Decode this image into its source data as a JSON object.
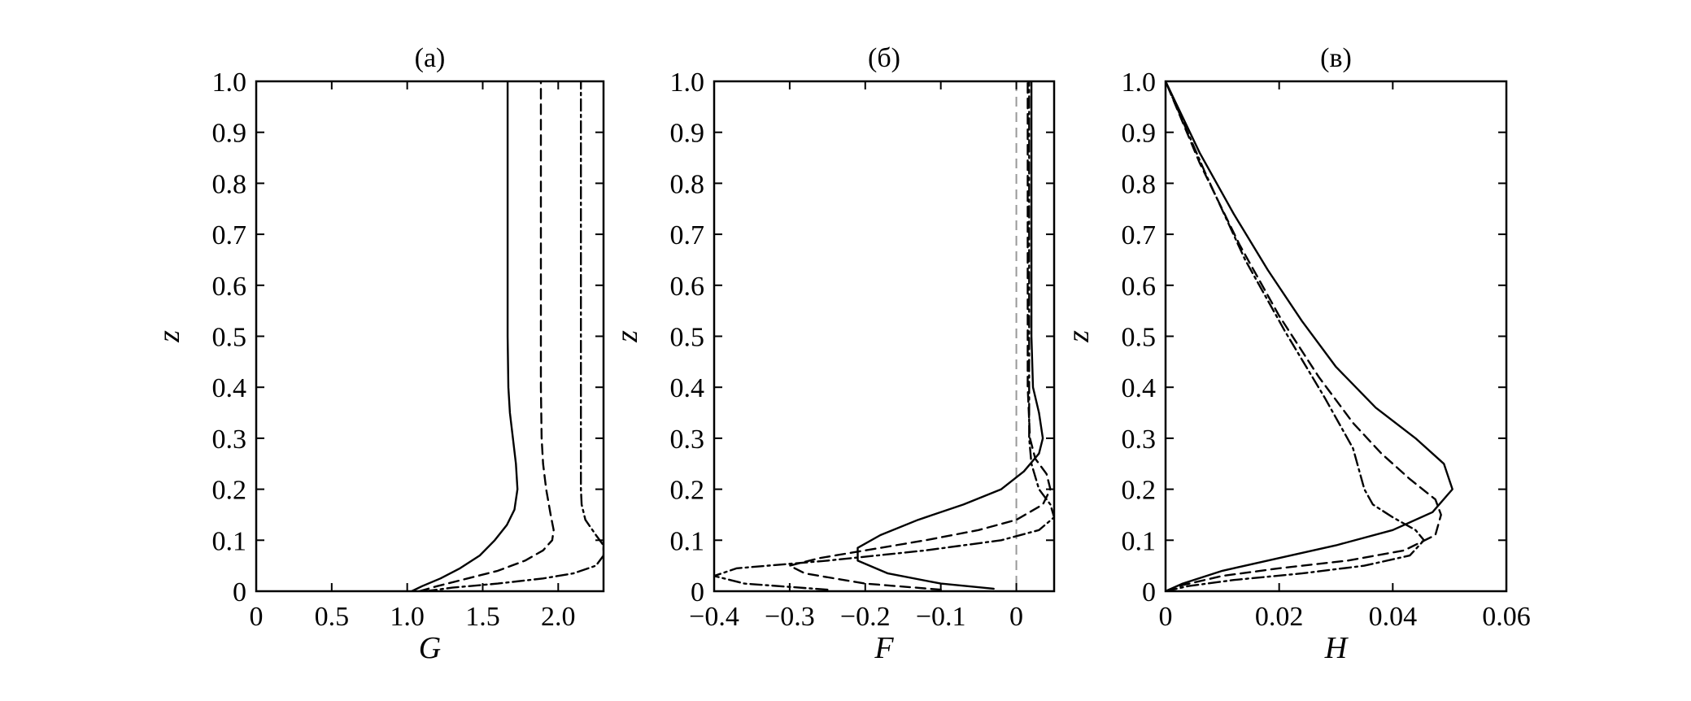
{
  "chart_data": [
    {
      "type": "line",
      "title": "(а)",
      "xlabel": "G",
      "ylabel": "z",
      "xlim": [
        0,
        2.3
      ],
      "ylim": [
        0,
        1.0
      ],
      "xticks": [
        0,
        0.5,
        1.0,
        1.5,
        2.0
      ],
      "xtick_labels": [
        "0",
        "0.5",
        "1.0",
        "1.5",
        "2.0"
      ],
      "yticks": [
        0,
        0.1,
        0.2,
        0.3,
        0.4,
        0.5,
        0.6,
        0.7,
        0.8,
        0.9,
        1.0
      ],
      "ytick_labels": [
        "0",
        "0.1",
        "0.2",
        "0.3",
        "0.4",
        "0.5",
        "0.6",
        "0.7",
        "0.8",
        "0.9",
        "1.0"
      ],
      "grid": false,
      "series": [
        {
          "style": "solid",
          "points": [
            [
              1.03,
              0
            ],
            [
              1.1,
              0.01
            ],
            [
              1.22,
              0.025
            ],
            [
              1.35,
              0.045
            ],
            [
              1.48,
              0.07
            ],
            [
              1.58,
              0.1
            ],
            [
              1.66,
              0.13
            ],
            [
              1.71,
              0.16
            ],
            [
              1.73,
              0.2
            ],
            [
              1.72,
              0.25
            ],
            [
              1.7,
              0.3
            ],
            [
              1.68,
              0.35
            ],
            [
              1.67,
              0.4
            ],
            [
              1.665,
              0.5
            ],
            [
              1.665,
              0.6
            ],
            [
              1.665,
              1.0
            ]
          ]
        },
        {
          "style": "dashed",
          "points": [
            [
              1.08,
              0
            ],
            [
              1.2,
              0.01
            ],
            [
              1.4,
              0.025
            ],
            [
              1.6,
              0.04
            ],
            [
              1.78,
              0.06
            ],
            [
              1.9,
              0.08
            ],
            [
              1.96,
              0.1
            ],
            [
              1.97,
              0.12
            ],
            [
              1.95,
              0.15
            ],
            [
              1.92,
              0.2
            ],
            [
              1.9,
              0.25
            ],
            [
              1.89,
              0.3
            ],
            [
              1.885,
              0.4
            ],
            [
              1.885,
              0.5
            ],
            [
              1.885,
              1.0
            ]
          ]
        },
        {
          "style": "dashdot",
          "points": [
            [
              1.12,
              0
            ],
            [
              1.3,
              0.007
            ],
            [
              1.6,
              0.015
            ],
            [
              1.9,
              0.025
            ],
            [
              2.1,
              0.035
            ],
            [
              2.25,
              0.05
            ],
            [
              2.3,
              0.07
            ],
            [
              2.3,
              0.09
            ],
            [
              2.25,
              0.11
            ],
            [
              2.18,
              0.14
            ],
            [
              2.155,
              0.17
            ],
            [
              2.15,
              0.2
            ],
            [
              2.15,
              0.3
            ],
            [
              2.15,
              1.0
            ]
          ]
        }
      ]
    },
    {
      "type": "line",
      "title": "(б)",
      "xlabel": "F",
      "ylabel": "z",
      "xlim": [
        -0.4,
        0.05
      ],
      "ylim": [
        0,
        1.0
      ],
      "xticks": [
        -0.4,
        -0.3,
        -0.2,
        -0.1,
        0
      ],
      "xtick_labels": [
        "−0.4",
        "−0.3",
        "−0.2",
        "−0.1",
        "0"
      ],
      "yticks": [
        0,
        0.1,
        0.2,
        0.3,
        0.4,
        0.5,
        0.6,
        0.7,
        0.8,
        0.9,
        1.0
      ],
      "ytick_labels": [
        "0",
        "0.1",
        "0.2",
        "0.3",
        "0.4",
        "0.5",
        "0.6",
        "0.7",
        "0.8",
        "0.9",
        "1.0"
      ],
      "grid": false,
      "reference_line": {
        "x": 0,
        "style": "dashed-gray"
      },
      "series": [
        {
          "style": "solid",
          "points": [
            [
              -0.03,
              0.005
            ],
            [
              -0.1,
              0.015
            ],
            [
              -0.17,
              0.035
            ],
            [
              -0.21,
              0.06
            ],
            [
              -0.21,
              0.085
            ],
            [
              -0.18,
              0.11
            ],
            [
              -0.13,
              0.14
            ],
            [
              -0.07,
              0.17
            ],
            [
              -0.02,
              0.2
            ],
            [
              0.01,
              0.235
            ],
            [
              0.03,
              0.27
            ],
            [
              0.035,
              0.3
            ],
            [
              0.03,
              0.35
            ],
            [
              0.022,
              0.4
            ],
            [
              0.02,
              0.5
            ],
            [
              0.02,
              1.0
            ]
          ]
        },
        {
          "style": "dashed",
          "points": [
            [
              -0.1,
              0.003
            ],
            [
              -0.2,
              0.015
            ],
            [
              -0.28,
              0.035
            ],
            [
              -0.3,
              0.05
            ],
            [
              -0.26,
              0.065
            ],
            [
              -0.2,
              0.08
            ],
            [
              -0.12,
              0.1
            ],
            [
              -0.05,
              0.12
            ],
            [
              0.0,
              0.14
            ],
            [
              0.035,
              0.17
            ],
            [
              0.045,
              0.2
            ],
            [
              0.04,
              0.23
            ],
            [
              0.025,
              0.26
            ],
            [
              0.018,
              0.3
            ],
            [
              0.015,
              0.4
            ],
            [
              0.015,
              1.0
            ]
          ]
        },
        {
          "style": "dashdot",
          "points": [
            [
              -0.25,
              0.003
            ],
            [
              -0.36,
              0.015
            ],
            [
              -0.4,
              0.03
            ],
            [
              -0.37,
              0.045
            ],
            [
              -0.25,
              0.06
            ],
            [
              -0.12,
              0.08
            ],
            [
              -0.02,
              0.1
            ],
            [
              0.03,
              0.12
            ],
            [
              0.05,
              0.145
            ],
            [
              0.045,
              0.17
            ],
            [
              0.03,
              0.2
            ],
            [
              0.02,
              0.25
            ],
            [
              0.017,
              0.3
            ],
            [
              0.017,
              1.0
            ]
          ]
        }
      ]
    },
    {
      "type": "line",
      "title": "(в)",
      "xlabel": "H",
      "ylabel": "z",
      "xlim": [
        0,
        0.06
      ],
      "ylim": [
        0,
        1.0
      ],
      "xticks": [
        0,
        0.02,
        0.04,
        0.06
      ],
      "xtick_labels": [
        "0",
        "0.02",
        "0.04",
        "0.06"
      ],
      "yticks": [
        0,
        0.1,
        0.2,
        0.3,
        0.4,
        0.5,
        0.6,
        0.7,
        0.8,
        0.9,
        1.0
      ],
      "ytick_labels": [
        "0",
        "0.1",
        "0.2",
        "0.3",
        "0.4",
        "0.5",
        "0.6",
        "0.7",
        "0.8",
        "0.9",
        "1.0"
      ],
      "grid": false,
      "series": [
        {
          "style": "solid",
          "points": [
            [
              0,
              0
            ],
            [
              0.003,
              0.015
            ],
            [
              0.01,
              0.04
            ],
            [
              0.02,
              0.065
            ],
            [
              0.03,
              0.09
            ],
            [
              0.04,
              0.12
            ],
            [
              0.047,
              0.155
            ],
            [
              0.0505,
              0.2
            ],
            [
              0.049,
              0.25
            ],
            [
              0.044,
              0.3
            ],
            [
              0.037,
              0.36
            ],
            [
              0.03,
              0.44
            ],
            [
              0.024,
              0.53
            ],
            [
              0.018,
              0.63
            ],
            [
              0.012,
              0.74
            ],
            [
              0.006,
              0.86
            ],
            [
              0,
              1.0
            ]
          ]
        },
        {
          "style": "dashed",
          "points": [
            [
              0,
              0
            ],
            [
              0.003,
              0.012
            ],
            [
              0.01,
              0.03
            ],
            [
              0.02,
              0.045
            ],
            [
              0.032,
              0.06
            ],
            [
              0.042,
              0.08
            ],
            [
              0.0475,
              0.11
            ],
            [
              0.0485,
              0.15
            ],
            [
              0.0475,
              0.18
            ],
            [
              0.043,
              0.22
            ],
            [
              0.038,
              0.27
            ],
            [
              0.033,
              0.33
            ],
            [
              0.027,
              0.42
            ],
            [
              0.02,
              0.54
            ],
            [
              0.013,
              0.68
            ],
            [
              0.006,
              0.84
            ],
            [
              0,
              1.0
            ]
          ]
        },
        {
          "style": "dashdot",
          "points": [
            [
              0,
              0
            ],
            [
              0.004,
              0.01
            ],
            [
              0.012,
              0.022
            ],
            [
              0.024,
              0.035
            ],
            [
              0.035,
              0.05
            ],
            [
              0.043,
              0.07
            ],
            [
              0.0455,
              0.1
            ],
            [
              0.044,
              0.12
            ],
            [
              0.04,
              0.145
            ],
            [
              0.0365,
              0.17
            ],
            [
              0.035,
              0.2
            ],
            [
              0.033,
              0.28
            ],
            [
              0.028,
              0.38
            ],
            [
              0.021,
              0.51
            ],
            [
              0.014,
              0.65
            ],
            [
              0.007,
              0.82
            ],
            [
              0,
              1.0
            ]
          ]
        }
      ]
    }
  ]
}
